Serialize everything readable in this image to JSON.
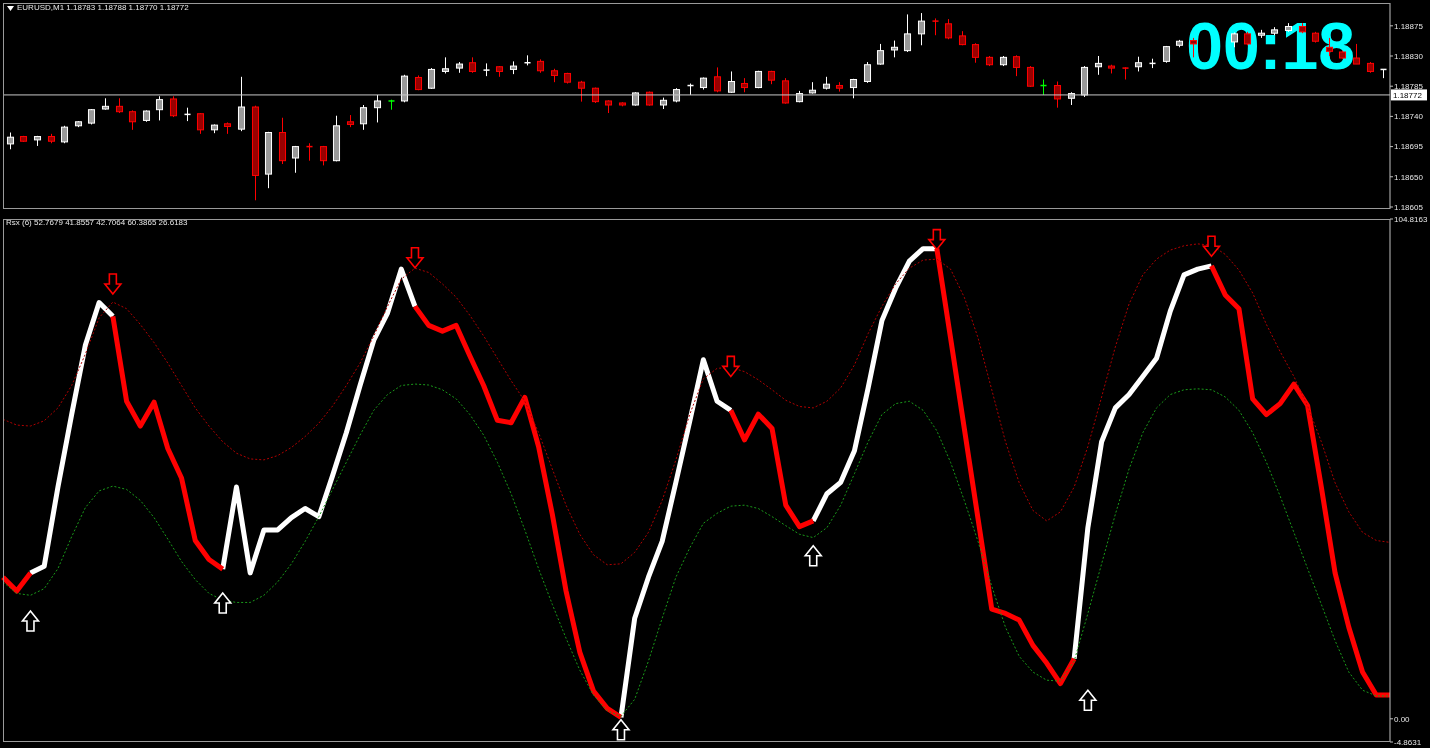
{
  "chart_data": [
    {
      "type": "candlestick",
      "title": "EURUSD,M1 1.18783 1.18788 1.18770 1.18772",
      "annotations": [
        "00:18"
      ],
      "categories": [
        null,
        null,
        null,
        null,
        null,
        null,
        null,
        null,
        null,
        null,
        null,
        null,
        null,
        null,
        null,
        null,
        null,
        null,
        null,
        null,
        null,
        null,
        null,
        null,
        null,
        null,
        null,
        null,
        null,
        null,
        null,
        null,
        null,
        null,
        null,
        null,
        null,
        null,
        null,
        null,
        null,
        null,
        null,
        null,
        null,
        null,
        null,
        null,
        null,
        null,
        null,
        null,
        null,
        null,
        null,
        null,
        null,
        null,
        null,
        null,
        null,
        null,
        null,
        null,
        null,
        null,
        null,
        null,
        null,
        null,
        null,
        null,
        null,
        null,
        null,
        null,
        null,
        null,
        null,
        null,
        null,
        null,
        null,
        null,
        null,
        null,
        null,
        null,
        null,
        null,
        null,
        null,
        null,
        null,
        null,
        null,
        null,
        null,
        null,
        null,
        null,
        null
      ],
      "ohlc": [
        [
          1.18699,
          1.18716,
          1.18691,
          1.18709
        ],
        [
          1.1871,
          1.18711,
          1.18702,
          1.18703
        ],
        [
          1.18705,
          1.18711,
          1.18696,
          1.1871
        ],
        [
          1.1871,
          1.18714,
          1.187,
          1.18703
        ],
        [
          1.18702,
          1.18726,
          1.187,
          1.18724
        ],
        [
          1.18726,
          1.18733,
          1.18724,
          1.18732
        ],
        [
          1.1873,
          1.18751,
          1.18728,
          1.1875
        ],
        [
          1.18751,
          1.18767,
          1.1875,
          1.18755
        ],
        [
          1.18755,
          1.18767,
          1.18745,
          1.18747
        ],
        [
          1.18747,
          1.18749,
          1.1872,
          1.18732
        ],
        [
          1.18734,
          1.18749,
          1.18732,
          1.18748
        ],
        [
          1.1875,
          1.1877,
          1.18734,
          1.18765
        ],
        [
          1.18766,
          1.1877,
          1.18739,
          1.18741
        ],
        [
          1.18741,
          1.18753,
          1.18733,
          1.18743
        ],
        [
          1.18744,
          1.18745,
          1.18714,
          1.1872
        ],
        [
          1.1872,
          1.18728,
          1.18715,
          1.18727
        ],
        [
          1.18729,
          1.18731,
          1.18714,
          1.18725
        ],
        [
          1.18721,
          1.18799,
          1.18718,
          1.18754
        ],
        [
          1.18754,
          1.18756,
          1.18615,
          1.18652
        ],
        [
          1.18654,
          1.18717,
          1.18633,
          1.18716
        ],
        [
          1.18716,
          1.18738,
          1.18669,
          1.18674
        ],
        [
          1.18678,
          1.18696,
          1.18656,
          1.18695
        ],
        [
          1.18695,
          1.187,
          1.18674,
          1.18693
        ],
        [
          1.18695,
          1.18696,
          1.18667,
          1.18674
        ],
        [
          1.18674,
          1.18741,
          1.18673,
          1.18726
        ],
        [
          1.18732,
          1.18742,
          1.18724,
          1.18728
        ],
        [
          1.18729,
          1.18757,
          1.1872,
          1.18753
        ],
        [
          1.18753,
          1.18772,
          1.18731,
          1.18763
        ],
        [
          1.18763,
          1.18765,
          1.1875,
          1.18763
        ],
        [
          1.18763,
          1.18802,
          1.18761,
          1.188
        ],
        [
          1.18798,
          1.18801,
          1.18779,
          1.1878
        ],
        [
          1.18782,
          1.18812,
          1.18781,
          1.1881
        ],
        [
          1.18807,
          1.18828,
          1.18804,
          1.18811
        ],
        [
          1.18812,
          1.18821,
          1.18805,
          1.18818
        ],
        [
          1.1882,
          1.18828,
          1.18805,
          1.18807
        ],
        [
          1.18807,
          1.18819,
          1.188,
          1.18809
        ],
        [
          1.18814,
          1.18815,
          1.18799,
          1.18807
        ],
        [
          1.1881,
          1.18822,
          1.18803,
          1.18815
        ],
        [
          1.18818,
          1.18831,
          1.18816,
          1.1882
        ],
        [
          1.18822,
          1.18825,
          1.18805,
          1.18808
        ],
        [
          1.18808,
          1.18811,
          1.18791,
          1.18801
        ],
        [
          1.18804,
          1.18805,
          1.18789,
          1.18791
        ],
        [
          1.18791,
          1.18793,
          1.18762,
          1.18782
        ],
        [
          1.18782,
          1.18783,
          1.1876,
          1.18762
        ],
        [
          1.18763,
          1.18764,
          1.18745,
          1.18757
        ],
        [
          1.1876,
          1.18761,
          1.18755,
          1.18757
        ],
        [
          1.18757,
          1.18776,
          1.18756,
          1.18775
        ],
        [
          1.18776,
          1.18777,
          1.18756,
          1.18757
        ],
        [
          1.18757,
          1.18768,
          1.18751,
          1.18764
        ],
        [
          1.18763,
          1.18782,
          1.18761,
          1.1878
        ],
        [
          1.18784,
          1.18789,
          1.18772,
          1.18786
        ],
        [
          1.18783,
          1.18798,
          1.1878,
          1.18797
        ],
        [
          1.18799,
          1.18813,
          1.18776,
          1.18778
        ],
        [
          1.18776,
          1.18807,
          1.18775,
          1.18792
        ],
        [
          1.18789,
          1.18797,
          1.18776,
          1.18783
        ],
        [
          1.18783,
          1.18808,
          1.18782,
          1.18807
        ],
        [
          1.18807,
          1.18808,
          1.18788,
          1.18794
        ],
        [
          1.18793,
          1.18797,
          1.18759,
          1.1876
        ],
        [
          1.18762,
          1.18778,
          1.18761,
          1.18774
        ],
        [
          1.18775,
          1.18791,
          1.18774,
          1.18779
        ],
        [
          1.18782,
          1.18799,
          1.1878,
          1.18788
        ],
        [
          1.18786,
          1.18791,
          1.18777,
          1.18782
        ],
        [
          1.18783,
          1.18796,
          1.18767,
          1.18795
        ],
        [
          1.18792,
          1.18821,
          1.1879,
          1.18817
        ],
        [
          1.18818,
          1.18848,
          1.18817,
          1.18838
        ],
        [
          1.18839,
          1.18853,
          1.18828,
          1.18843
        ],
        [
          1.18838,
          1.18892,
          1.18836,
          1.18863
        ],
        [
          1.18863,
          1.18894,
          1.18846,
          1.18882
        ],
        [
          1.18882,
          1.18886,
          1.18861,
          1.1888
        ],
        [
          1.18878,
          1.18885,
          1.18855,
          1.18857
        ],
        [
          1.1886,
          1.18867,
          1.18846,
          1.18847
        ],
        [
          1.18847,
          1.18849,
          1.1882,
          1.18828
        ],
        [
          1.18828,
          1.1883,
          1.18815,
          1.18817
        ],
        [
          1.18817,
          1.1883,
          1.18815,
          1.18828
        ],
        [
          1.18829,
          1.18831,
          1.188,
          1.18813
        ],
        [
          1.18813,
          1.18815,
          1.18784,
          1.18785
        ],
        [
          1.18786,
          1.18795,
          1.18772,
          1.18786
        ],
        [
          1.18786,
          1.18792,
          1.18753,
          1.18766
        ],
        [
          1.18767,
          1.18776,
          1.18757,
          1.18774
        ],
        [
          1.18772,
          1.18815,
          1.18769,
          1.18813
        ],
        [
          1.18814,
          1.1883,
          1.18802,
          1.18819
        ],
        [
          1.18815,
          1.18817,
          1.18804,
          1.18812
        ],
        [
          1.18812,
          1.18813,
          1.18795,
          1.1881
        ],
        [
          1.18814,
          1.18829,
          1.18807,
          1.1882
        ],
        [
          1.18817,
          1.18826,
          1.18812,
          1.18819
        ],
        [
          1.18822,
          1.18845,
          1.1882,
          1.18844
        ],
        [
          1.18846,
          1.18854,
          1.18843,
          1.18852
        ],
        [
          1.18853,
          1.18857,
          1.18828,
          1.18848
        ],
        null,
        null,
        [
          1.18851,
          1.18865,
          1.18843,
          1.18863
        ],
        [
          1.18863,
          1.18866,
          1.18846,
          1.18848
        ],
        [
          1.18861,
          1.18869,
          1.18857,
          1.18864
        ],
        [
          1.18864,
          1.18873,
          1.18861,
          1.18869
        ],
        [
          1.18868,
          1.18879,
          1.18866,
          1.18874
        ],
        [
          1.18874,
          1.18879,
          1.18864,
          1.18866
        ],
        [
          1.18864,
          1.18866,
          1.1885,
          1.18852
        ],
        [
          1.18843,
          1.18857,
          1.1883,
          1.18837
        ],
        [
          1.18836,
          1.18838,
          1.18826,
          1.18827
        ],
        [
          1.18827,
          1.18848,
          1.18818,
          1.18818
        ],
        [
          1.18819,
          1.18821,
          1.18805,
          1.18807
        ],
        [
          1.18808,
          1.1881,
          1.18797,
          1.1881
        ]
      ],
      "colors": [
        "#ffffff",
        "#ff0000",
        "#ffffff",
        "#ff0000",
        "#ffffff",
        "#ffffff",
        "#ffffff",
        "#ffffff",
        "#ff0000",
        "#ff0000",
        "#ffffff",
        "#ffffff",
        "#ff0000",
        "#ffffff",
        "#ff0000",
        "#ffffff",
        "#ff0000",
        "#ffffff",
        "#ff0000",
        "#ffffff",
        "#ff0000",
        "#ffffff",
        "#ff0000",
        "#ff0000",
        "#ffffff",
        "#ff0000",
        "#ffffff",
        "#ffffff",
        "#00ff00",
        "#ffffff",
        "#ff0000",
        "#ffffff",
        "#ffffff",
        "#ffffff",
        "#ff0000",
        "#ffffff",
        "#ff0000",
        "#ffffff",
        "#ffffff",
        "#ff0000",
        "#ff0000",
        "#ff0000",
        "#ff0000",
        "#ff0000",
        "#ff0000",
        "#ff0000",
        "#ffffff",
        "#ff0000",
        "#ffffff",
        "#ffffff",
        "#ffffff",
        "#ffffff",
        "#ff0000",
        "#ffffff",
        "#ff0000",
        "#ffffff",
        "#ff0000",
        "#ff0000",
        "#ffffff",
        "#ffffff",
        "#ffffff",
        "#ff0000",
        "#ffffff",
        "#ffffff",
        "#ffffff",
        "#ffffff",
        "#ffffff",
        "#ffffff",
        "#ff0000",
        "#ff0000",
        "#ff0000",
        "#ff0000",
        "#ff0000",
        "#ffffff",
        "#ff0000",
        "#ff0000",
        "#00ff00",
        "#ff0000",
        "#ffffff",
        "#ffffff",
        "#ffffff",
        "#ff0000",
        "#ff0000",
        "#ffffff",
        "#ffffff",
        "#ffffff",
        "#ffffff",
        "#ff0000",
        null,
        null,
        "#ffffff",
        "#ff0000",
        "#ffffff",
        "#ffffff",
        "#ffffff",
        "#ff0000",
        "#ff0000",
        "#ff0000",
        "#ff0000",
        "#ff0000",
        "#ff0000",
        "#ffffff"
      ],
      "ylim": [
        1.18602,
        1.18909
      ],
      "yticks": [
        1.18605,
        {
          "value": 1.1865,
          "label": "1.18650"
        },
        1.18695,
        {
          "value": 1.1874,
          "label": "1.18740"
        },
        1.18785,
        {
          "value": 1.1883,
          "label": "1.18830"
        },
        1.18875
      ],
      "ref_lines": [
        {
          "axis": "y",
          "value": 1.18772,
          "label": "1.18772",
          "color": "#c8c8c8"
        }
      ]
    },
    {
      "type": "line",
      "title": "Rsx (6) 52.7679 41.8557 42.7064 60.3865 26.6183",
      "categories": [
        null,
        null,
        null,
        null,
        null,
        null,
        null,
        null,
        null,
        null,
        null,
        null,
        null,
        null,
        null,
        null,
        null,
        null,
        null,
        null,
        null,
        null,
        null,
        null,
        null,
        null,
        null,
        null,
        null,
        null,
        null,
        null,
        null,
        null,
        null,
        null,
        null,
        null,
        null,
        null,
        null,
        null,
        null,
        null,
        null,
        null,
        null,
        null,
        null,
        null,
        null,
        null,
        null,
        null,
        null,
        null,
        null,
        null,
        null,
        null,
        null,
        null,
        null,
        null,
        null,
        null,
        null,
        null,
        null,
        null,
        null,
        null,
        null,
        null,
        null,
        null,
        null,
        null,
        null,
        null,
        null,
        null,
        null,
        null,
        null,
        null,
        null,
        null,
        null,
        null,
        null,
        null,
        null,
        null,
        null,
        null,
        null,
        null,
        null,
        null,
        null,
        null
      ],
      "series": [
        {
          "type": "line",
          "color": "#ffffff",
          "values": [
            null,
            null,
            30.6,
            32.0,
            48.6,
            63.8,
            78.4,
            87.3,
            84.4,
            null,
            null,
            null,
            null,
            null,
            null,
            null,
            31.4,
            48.6,
            30.6,
            39.6,
            39.6,
            42.2,
            44.1,
            42.4,
            51.0,
            60.0,
            69.9,
            79.4,
            85.1,
            94.3,
            86.5,
            null,
            null,
            null,
            null,
            null,
            null,
            null,
            null,
            null,
            null,
            null,
            null,
            null,
            null,
            0.3,
            21.1,
            29.7,
            37.2,
            49.6,
            62.3,
            75.3,
            66.6,
            64.7,
            null,
            null,
            null,
            null,
            null,
            41.5,
            47.2,
            49.6,
            56.2,
            69.4,
            83.5,
            90.3,
            96.0,
            98.6,
            98.6,
            null,
            null,
            null,
            null,
            null,
            null,
            null,
            null,
            null,
            12.6,
            40.1,
            58.1,
            65.2,
            68.0,
            71.8,
            75.6,
            85.5,
            93.1,
            94.3,
            95.0,
            null,
            null,
            null,
            null,
            null,
            null,
            null,
            null,
            null,
            null,
            null,
            null,
            null
          ]
        },
        {
          "type": "line",
          "color": "#ff0000",
          "values": [
            29.7,
            26.8,
            30.6,
            null,
            null,
            null,
            null,
            null,
            84.4,
            66.6,
            61.4,
            66.4,
            56.7,
            50.5,
            37.4,
            33.4,
            31.4,
            null,
            null,
            null,
            null,
            null,
            null,
            null,
            null,
            null,
            null,
            null,
            null,
            null,
            86.5,
            82.5,
            81.3,
            82.5,
            76.1,
            69.9,
            62.6,
            62.1,
            67.4,
            57.1,
            42.9,
            26.8,
            14.0,
            5.8,
            2.2,
            0.3,
            null,
            null,
            null,
            null,
            null,
            null,
            null,
            64.7,
            58.5,
            63.9,
            60.9,
            44.8,
            40.3,
            41.5,
            null,
            null,
            null,
            null,
            null,
            null,
            null,
            null,
            98.6,
            79.9,
            60.9,
            42.0,
            23.0,
            22.1,
            20.7,
            15.4,
            11.7,
            7.4,
            12.6,
            null,
            null,
            null,
            null,
            null,
            null,
            null,
            null,
            null,
            95.0,
            88.9,
            86.0,
            67.1,
            63.8,
            66.1,
            70.2,
            65.7,
            48.6,
            30.6,
            19.2,
            9.8,
            5.0,
            5.0
          ]
        },
        {
          "type": "line",
          "color": "#b00000",
          "line_style": "dotted",
          "values": [
            62.8,
            61.6,
            61.4,
            62.5,
            65.2,
            69.9,
            76.5,
            84.1,
            87.4,
            86.0,
            82.7,
            78.9,
            74.6,
            69.9,
            65.2,
            61.4,
            58.1,
            55.7,
            54.5,
            54.3,
            55.2,
            56.9,
            59.2,
            62.0,
            65.6,
            69.9,
            74.6,
            80.3,
            86.5,
            92.2,
            94.5,
            93.6,
            91.2,
            88.4,
            84.6,
            80.3,
            75.6,
            70.9,
            66.6,
            60.0,
            52.4,
            44.8,
            38.7,
            34.4,
            32.3,
            32.5,
            34.9,
            39.1,
            45.8,
            54.3,
            63.8,
            71.3,
            73.5,
            73.7,
            72.8,
            71.1,
            69.0,
            66.8,
            65.5,
            65.2,
            66.6,
            69.4,
            74.2,
            80.8,
            86.5,
            91.2,
            94.5,
            96.2,
            96.4,
            94.3,
            88.4,
            79.9,
            69.0,
            58.1,
            49.5,
            43.7,
            41.5,
            43.4,
            48.6,
            57.1,
            67.5,
            78.0,
            87.0,
            93.1,
            96.4,
            98.3,
            99.2,
            99.6,
            99.3,
            97.4,
            94.1,
            89.3,
            82.7,
            77.0,
            71.8,
            65.6,
            58.1,
            49.5,
            43.4,
            39.1,
            37.4,
            37.0
          ]
        },
        {
          "type": "line",
          "color": "#1a9a1a",
          "line_style": "dotted",
          "values": [
            28.7,
            26.3,
            25.9,
            27.3,
            31.5,
            38.2,
            44.3,
            47.8,
            48.8,
            48.1,
            45.8,
            42.2,
            37.7,
            33.0,
            29.2,
            26.3,
            24.9,
            24.4,
            24.4,
            25.9,
            28.7,
            32.5,
            37.2,
            42.4,
            48.1,
            53.8,
            59.5,
            64.7,
            68.0,
            69.9,
            70.2,
            70.0,
            69.0,
            67.1,
            63.8,
            59.5,
            53.8,
            47.2,
            39.6,
            31.5,
            24.0,
            16.9,
            10.2,
            5.0,
            1.7,
            0.5,
            4.1,
            12.1,
            21.1,
            29.7,
            35.8,
            41.0,
            43.1,
            44.6,
            44.8,
            44.1,
            42.4,
            40.5,
            38.7,
            38.0,
            40.1,
            44.8,
            51.4,
            58.1,
            63.8,
            66.1,
            66.6,
            64.7,
            60.4,
            53.8,
            45.8,
            37.2,
            27.8,
            19.2,
            13.1,
            9.8,
            8.1,
            7.9,
            12.1,
            22.1,
            32.5,
            42.9,
            52.4,
            60.0,
            65.2,
            68.0,
            69.0,
            69.2,
            69.0,
            67.5,
            64.7,
            60.0,
            53.8,
            46.7,
            39.1,
            31.5,
            24.0,
            16.4,
            9.8,
            6.0,
            4.8,
            4.8
          ]
        },
        {
          "type": "scatter",
          "color": "#ff0000",
          "marker": "triangle",
          "values": [
            null,
            null,
            null,
            null,
            null,
            null,
            null,
            null,
            91.2,
            null,
            null,
            null,
            null,
            null,
            null,
            null,
            null,
            null,
            null,
            null,
            null,
            null,
            null,
            null,
            null,
            null,
            null,
            null,
            null,
            null,
            96.7,
            null,
            null,
            null,
            null,
            null,
            null,
            null,
            null,
            null,
            null,
            null,
            null,
            null,
            null,
            null,
            null,
            null,
            null,
            null,
            null,
            null,
            null,
            73.9,
            null,
            null,
            null,
            null,
            null,
            null,
            null,
            null,
            null,
            null,
            null,
            null,
            null,
            null,
            100.5,
            null,
            null,
            null,
            null,
            null,
            null,
            null,
            null,
            null,
            null,
            null,
            null,
            null,
            null,
            null,
            null,
            null,
            null,
            null,
            99.1,
            null,
            null,
            null,
            null,
            null,
            null,
            null,
            null,
            null,
            null,
            null,
            null,
            null
          ]
        },
        {
          "type": "scatter",
          "color": "#ffffff",
          "marker": "triangle",
          "values": [
            null,
            null,
            20.5,
            null,
            null,
            null,
            null,
            null,
            null,
            null,
            null,
            null,
            null,
            null,
            null,
            null,
            24.3,
            null,
            null,
            null,
            null,
            null,
            null,
            null,
            null,
            null,
            null,
            null,
            null,
            null,
            null,
            null,
            null,
            null,
            null,
            null,
            null,
            null,
            null,
            null,
            null,
            null,
            null,
            null,
            null,
            -2.3,
            null,
            null,
            null,
            null,
            null,
            null,
            null,
            null,
            null,
            null,
            null,
            null,
            null,
            34.2,
            null,
            null,
            null,
            null,
            null,
            null,
            null,
            null,
            null,
            null,
            null,
            null,
            null,
            null,
            null,
            null,
            null,
            null,
            null,
            3.9,
            null,
            null,
            null,
            null,
            null,
            null,
            null,
            null,
            null,
            null,
            null,
            null,
            null,
            null,
            null,
            null,
            null,
            null,
            null,
            null,
            null,
            null
          ]
        }
      ],
      "ylim": [
        -4.8631,
        104.8163
      ],
      "yticks": [
        -4.8631,
        {
          "value": 0,
          "label": "0.00"
        },
        104.8163
      ]
    }
  ]
}
